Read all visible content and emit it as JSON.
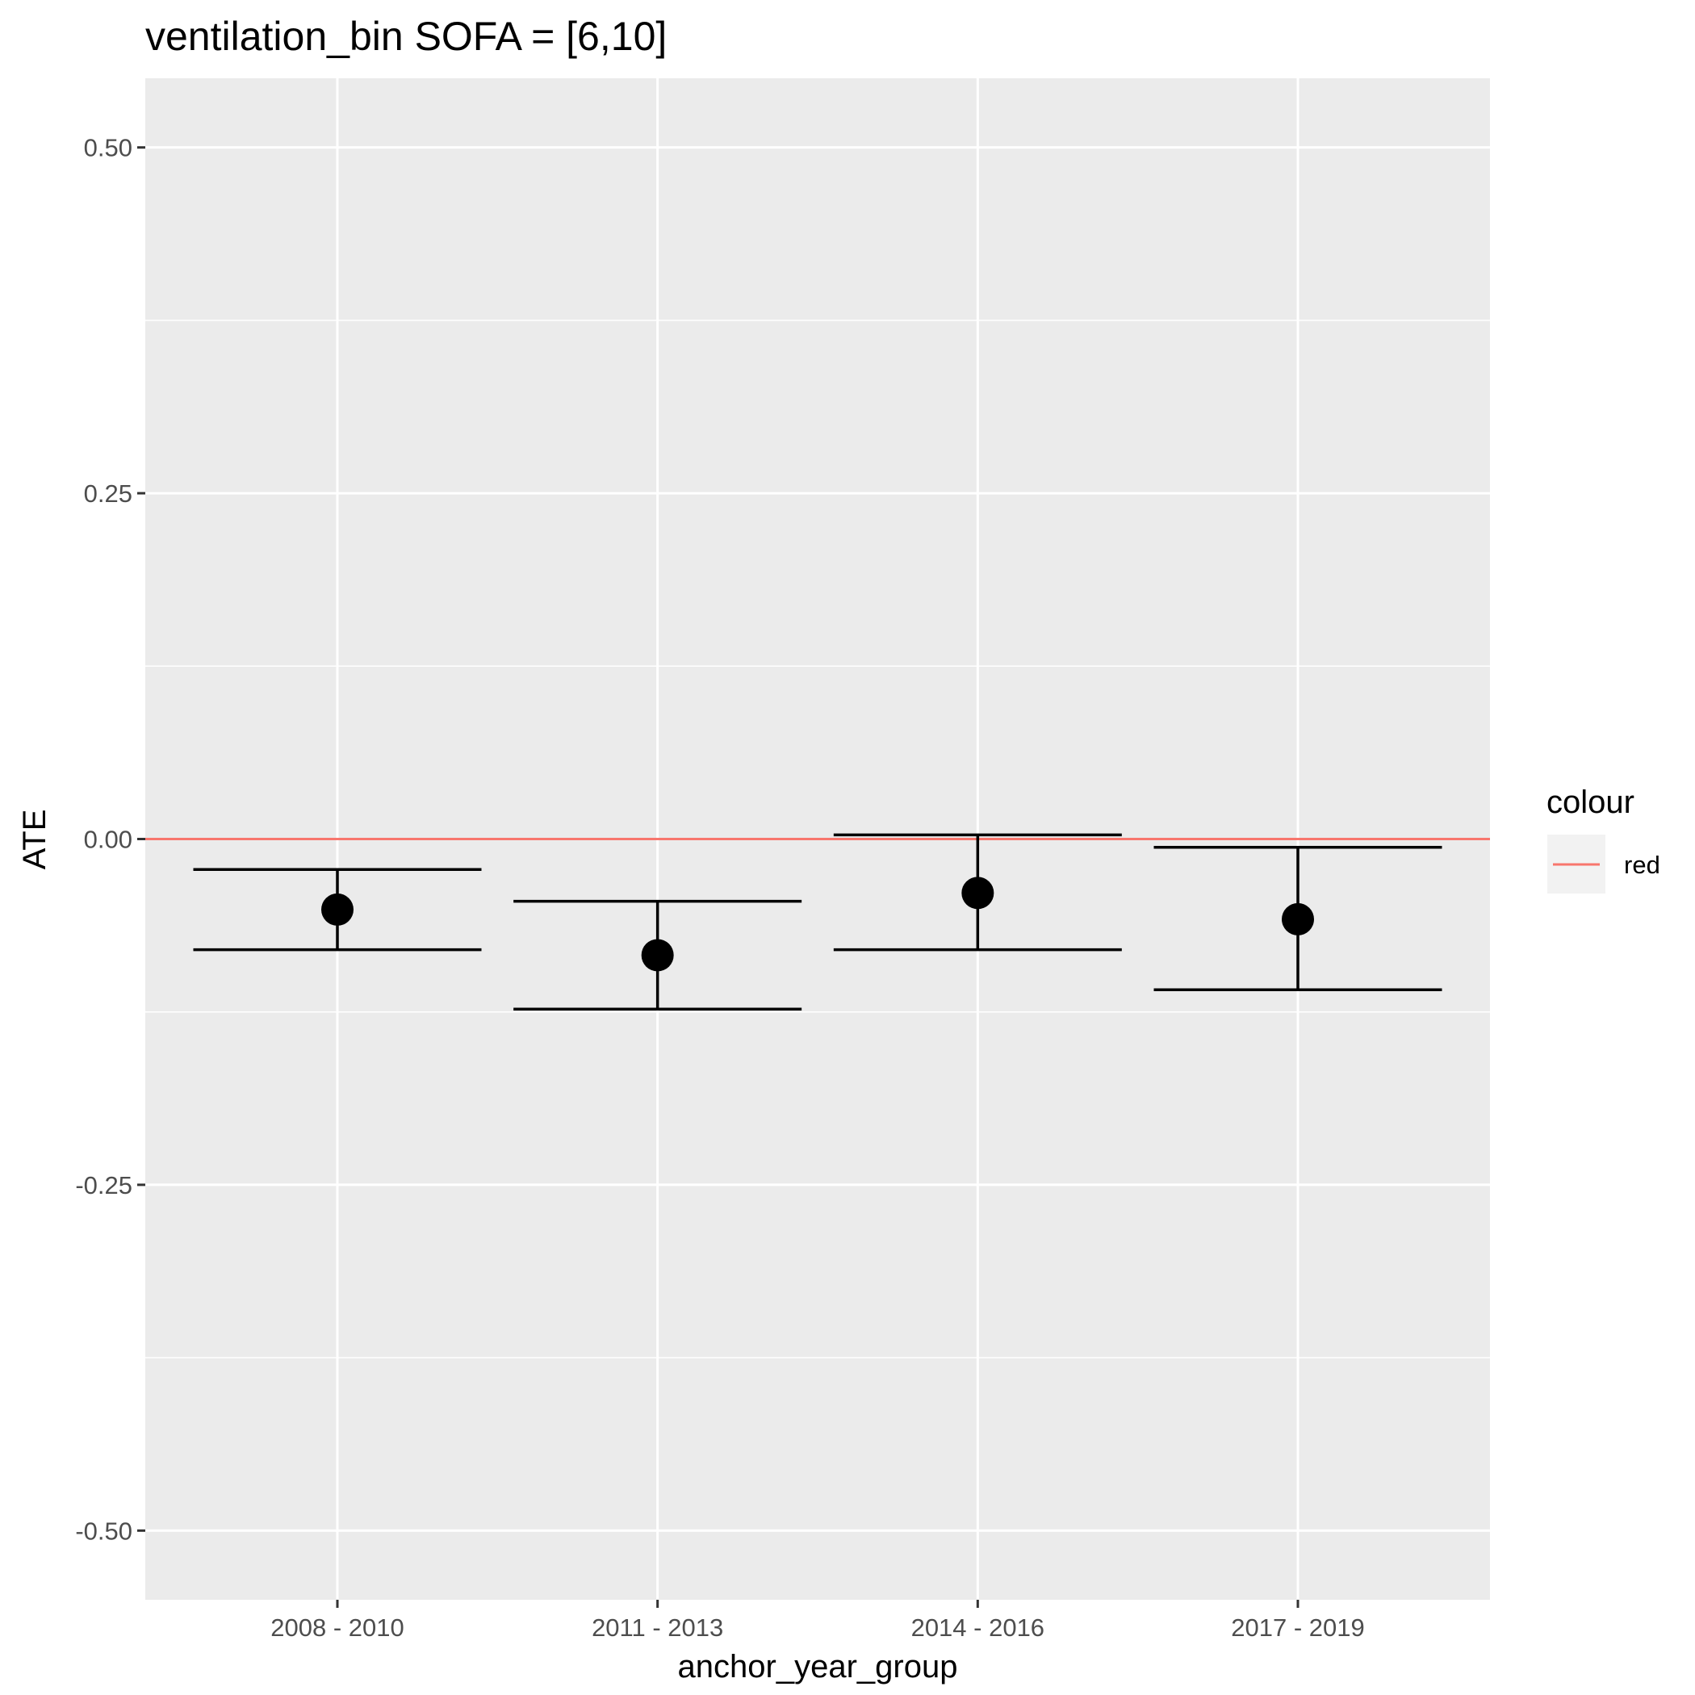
{
  "chart_data": {
    "type": "scatter",
    "title": "ventilation_bin SOFA = [6,10]",
    "xlabel": "anchor_year_group",
    "ylabel": "ATE",
    "categories": [
      "2008 - 2010",
      "2011 - 2013",
      "2014 - 2016",
      "2017 - 2019"
    ],
    "values": [
      -0.051,
      -0.084,
      -0.039,
      -0.058
    ],
    "ci_lower": [
      -0.08,
      -0.123,
      -0.08,
      -0.109
    ],
    "ci_upper": [
      -0.022,
      -0.045,
      0.003,
      -0.006
    ],
    "reference_line": {
      "y": 0.0,
      "color": "#F8766D"
    },
    "ylim": [
      -0.55,
      0.55
    ],
    "yticks": [
      0.5,
      0.25,
      0.0,
      -0.25,
      -0.5
    ],
    "ytick_labels": [
      "0.50",
      "0.25",
      "0.00",
      "-0.25",
      "-0.50"
    ],
    "grid": true,
    "panel_background": "#EBEBEB",
    "point_color": "#000000",
    "legend": {
      "title": "colour",
      "position": "right",
      "entries": [
        {
          "label": "red",
          "color": "#F8766D"
        }
      ]
    }
  }
}
